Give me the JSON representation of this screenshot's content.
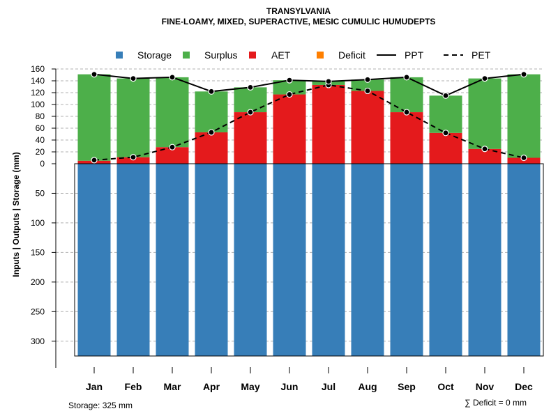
{
  "chart_data": {
    "type": "bar",
    "title": "TRANSYLVANIA",
    "subtitle": "FINE-LOAMY, MIXED, SUPERACTIVE, MESIC CUMULIC HUMUDEPTS",
    "ylabel": "Inputs | Outputs | Storage     (mm)",
    "categories": [
      "Jan",
      "Feb",
      "Mar",
      "Apr",
      "May",
      "Jun",
      "Jul",
      "Aug",
      "Sep",
      "Oct",
      "Nov",
      "Dec"
    ],
    "upper_ylim": [
      0,
      160
    ],
    "upper_ticks": [
      "0",
      "20",
      "40",
      "60",
      "80",
      "100",
      "120",
      "140",
      "160"
    ],
    "lower_ylim": [
      0,
      325
    ],
    "lower_ticks": [
      "50",
      "100",
      "150",
      "200",
      "250",
      "300"
    ],
    "grid": true,
    "legend_position": "top",
    "legend": {
      "storage": "Storage",
      "surplus": "Surplus",
      "aet": "AET",
      "deficit": "Deficit",
      "ppt": "PPT",
      "pet": "PET"
    },
    "colors": {
      "storage": "#377EB8",
      "surplus": "#4DAF4A",
      "aet": "#E41A1C",
      "deficit": "#FF7F00",
      "line": "#000000"
    },
    "series": [
      {
        "name": "Storage",
        "values": [
          325,
          325,
          325,
          325,
          325,
          325,
          325,
          325,
          325,
          325,
          325,
          325
        ]
      },
      {
        "name": "AET",
        "values": [
          5,
          11,
          28,
          53,
          87,
          117,
          133,
          123,
          87,
          52,
          25,
          10
        ]
      },
      {
        "name": "Surplus",
        "values": [
          146,
          133,
          118,
          69,
          42,
          24,
          6,
          19,
          59,
          63,
          119,
          141
        ]
      },
      {
        "name": "Deficit",
        "values": [
          0,
          0,
          0,
          0,
          0,
          0,
          0,
          0,
          0,
          0,
          0,
          0
        ]
      },
      {
        "name": "PPT",
        "values": [
          151,
          144,
          146,
          122,
          129,
          141,
          139,
          142,
          146,
          115,
          144,
          151
        ]
      },
      {
        "name": "PET",
        "values": [
          6,
          11,
          28,
          53,
          87,
          117,
          133,
          123,
          87,
          52,
          25,
          10
        ]
      }
    ]
  },
  "notes": {
    "storage": "Storage: 325 mm",
    "deficit_total": "∑ Deficit = 0 mm"
  }
}
